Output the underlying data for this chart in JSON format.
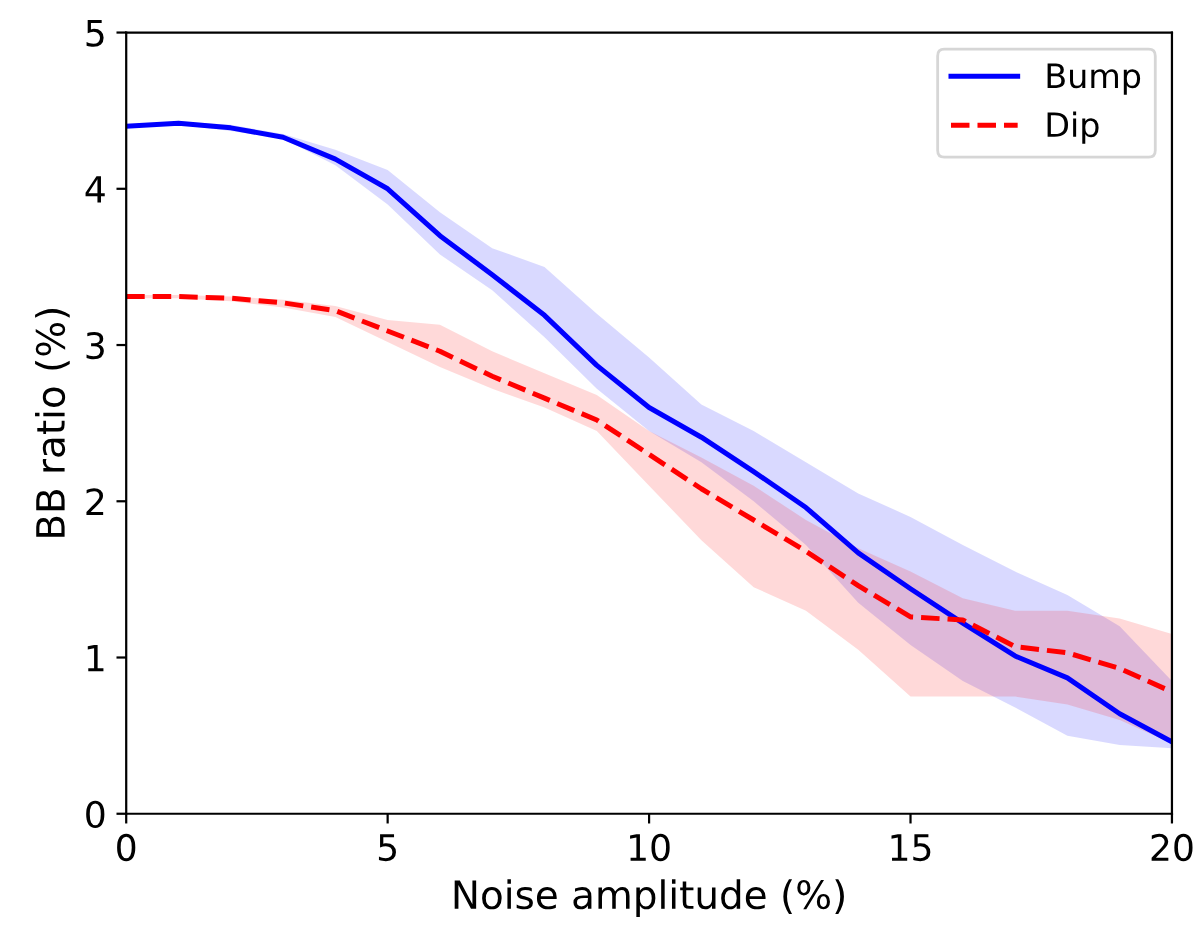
{
  "chart_data": {
    "type": "line",
    "xlabel": "Noise amplitude (%)",
    "ylabel": "BB ratio (%)",
    "x": [
      0,
      1,
      2,
      3,
      4,
      5,
      6,
      7,
      8,
      9,
      10,
      11,
      12,
      13,
      14,
      15,
      16,
      17,
      18,
      19,
      20
    ],
    "xlim": [
      0,
      20
    ],
    "xticks": [
      0,
      5,
      10,
      15,
      20
    ],
    "ylim": [
      0,
      5
    ],
    "yticks": [
      0,
      1,
      2,
      3,
      4,
      5
    ],
    "grid": false,
    "legend": "top right",
    "marker": "none",
    "series": [
      {
        "name": "Bump",
        "color": "#0000ff",
        "line_style": "solid",
        "values": [
          4.4,
          4.42,
          4.39,
          4.33,
          4.19,
          4.0,
          3.7,
          3.45,
          3.19,
          2.87,
          2.6,
          2.41,
          2.19,
          1.96,
          1.67,
          1.44,
          1.22,
          1.01,
          0.87,
          0.64,
          0.46
        ],
        "lower": [
          4.4,
          4.41,
          4.37,
          4.32,
          4.15,
          3.9,
          3.58,
          3.35,
          3.05,
          2.72,
          2.45,
          2.25,
          2.0,
          1.72,
          1.35,
          1.08,
          0.85,
          0.68,
          0.5,
          0.44,
          0.42
        ],
        "upper": [
          4.41,
          4.43,
          4.41,
          4.35,
          4.25,
          4.12,
          3.85,
          3.62,
          3.5,
          3.2,
          2.92,
          2.62,
          2.45,
          2.25,
          2.05,
          1.9,
          1.72,
          1.55,
          1.4,
          1.2,
          0.85
        ]
      },
      {
        "name": "Dip",
        "color": "#ff0000",
        "line_style": "dashed",
        "values": [
          3.31,
          3.31,
          3.3,
          3.27,
          3.22,
          3.09,
          2.96,
          2.8,
          2.66,
          2.52,
          2.3,
          2.08,
          1.88,
          1.68,
          1.46,
          1.26,
          1.24,
          1.07,
          1.03,
          0.93,
          0.78
        ],
        "lower": [
          3.3,
          3.3,
          3.28,
          3.24,
          3.18,
          3.02,
          2.86,
          2.72,
          2.6,
          2.45,
          2.1,
          1.75,
          1.45,
          1.3,
          1.05,
          0.75,
          0.75,
          0.75,
          0.7,
          0.6,
          0.45
        ],
        "upper": [
          3.32,
          3.32,
          3.31,
          3.29,
          3.25,
          3.16,
          3.13,
          2.96,
          2.82,
          2.68,
          2.45,
          2.28,
          2.1,
          1.88,
          1.7,
          1.55,
          1.38,
          1.3,
          1.3,
          1.25,
          1.15
        ]
      }
    ]
  }
}
